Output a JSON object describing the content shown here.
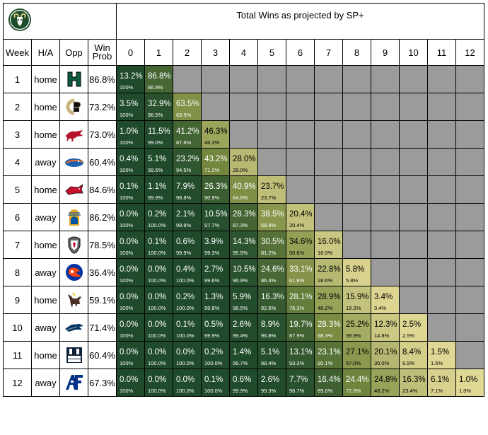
{
  "chart_data": {
    "type": "table",
    "title": "Total Wins as projected by SP+",
    "columns": {
      "week": "Week",
      "home_away": "H/A",
      "opponent": "Opp",
      "win_prob_line1": "Win",
      "win_prob_line2": "Prob"
    },
    "win_totals": [
      "0",
      "1",
      "2",
      "3",
      "4",
      "5",
      "6",
      "7",
      "8",
      "9",
      "10",
      "11",
      "12"
    ],
    "team_logo_icon": "csu-ram-logo-icon",
    "rows": [
      {
        "week": "1",
        "ha": "home",
        "opp_icon": "hawaii-logo-icon",
        "win_prob": "86.8%",
        "probs": [
          "13.2%",
          "86.8%"
        ],
        "cum": [
          "100%",
          "86.8%"
        ]
      },
      {
        "week": "2",
        "ha": "home",
        "opp_icon": "colorado-logo-icon",
        "win_prob": "73.2%",
        "probs": [
          "3.5%",
          "32.9%",
          "63.5%"
        ],
        "cum": [
          "100%",
          "96.5%",
          "63.5%"
        ]
      },
      {
        "week": "3",
        "ha": "home",
        "opp_icon": "arkansas-logo-icon",
        "win_prob": "73.0%",
        "probs": [
          "1.0%",
          "11.5%",
          "41.2%",
          "46.3%"
        ],
        "cum": [
          "100%",
          "99.0%",
          "87.6%",
          "46.3%"
        ]
      },
      {
        "week": "4",
        "ha": "away",
        "opp_icon": "florida-logo-icon",
        "win_prob": "60.4%",
        "probs": [
          "0.4%",
          "5.1%",
          "23.2%",
          "43.2%",
          "28.0%"
        ],
        "cum": [
          "100%",
          "99.6%",
          "94.5%",
          "71.2%",
          "28.0%"
        ]
      },
      {
        "week": "5",
        "ha": "home",
        "opp_icon": "illinois-state-logo-icon",
        "win_prob": "84.6%",
        "probs": [
          "0.1%",
          "1.1%",
          "7.9%",
          "26.3%",
          "40.9%",
          "23.7%"
        ],
        "cum": [
          "100%",
          "99.9%",
          "98.8%",
          "90.9%",
          "64.6%",
          "23.7%"
        ]
      },
      {
        "week": "6",
        "ha": "away",
        "opp_icon": "san-jose-state-logo-icon",
        "win_prob": "86.2%",
        "probs": [
          "0.0%",
          "0.2%",
          "2.1%",
          "10.5%",
          "28.3%",
          "38.5%",
          "20.4%"
        ],
        "cum": [
          "100%",
          "100.0%",
          "99.8%",
          "97.7%",
          "87.3%",
          "58.9%",
          "20.4%"
        ]
      },
      {
        "week": "7",
        "ha": "home",
        "opp_icon": "new-mexico-logo-icon",
        "win_prob": "78.5%",
        "probs": [
          "0.0%",
          "0.1%",
          "0.6%",
          "3.9%",
          "14.3%",
          "30.5%",
          "34.6%",
          "16.0%"
        ],
        "cum": [
          "100%",
          "100.0%",
          "99.9%",
          "99.3%",
          "95.5%",
          "81.2%",
          "50.6%",
          "16.0%"
        ]
      },
      {
        "week": "8",
        "ha": "away",
        "opp_icon": "boise-state-logo-icon",
        "win_prob": "36.4%",
        "probs": [
          "0.0%",
          "0.0%",
          "0.4%",
          "2.7%",
          "10.5%",
          "24.6%",
          "33.1%",
          "22.8%",
          "5.8%"
        ],
        "cum": [
          "100%",
          "100.0%",
          "100.0%",
          "99.6%",
          "96.9%",
          "86.4%",
          "61.8%",
          "28.6%",
          "5.8%"
        ]
      },
      {
        "week": "9",
        "ha": "home",
        "opp_icon": "wyoming-logo-icon",
        "win_prob": "59.1%",
        "probs": [
          "0.0%",
          "0.0%",
          "0.2%",
          "1.3%",
          "5.9%",
          "16.3%",
          "28.1%",
          "28.9%",
          "15.9%",
          "3.4%"
        ],
        "cum": [
          "100%",
          "100.0%",
          "100.0%",
          "99.8%",
          "98.5%",
          "92.6%",
          "76.3%",
          "48.2%",
          "19.3%",
          "3.4%"
        ]
      },
      {
        "week": "10",
        "ha": "away",
        "opp_icon": "nevada-logo-icon",
        "win_prob": "71.4%",
        "probs": [
          "0.0%",
          "0.0%",
          "0.1%",
          "0.5%",
          "2.6%",
          "8.9%",
          "19.7%",
          "28.3%",
          "25.2%",
          "12.3%",
          "2.5%"
        ],
        "cum": [
          "100%",
          "100.0%",
          "100.0%",
          "99.9%",
          "99.4%",
          "96.8%",
          "87.9%",
          "68.3%",
          "39.9%",
          "14.8%",
          "2.5%"
        ]
      },
      {
        "week": "11",
        "ha": "home",
        "opp_icon": "utah-state-logo-icon",
        "win_prob": "60.4%",
        "probs": [
          "0.0%",
          "0.0%",
          "0.0%",
          "0.2%",
          "1.4%",
          "5.1%",
          "13.1%",
          "23.1%",
          "27.1%",
          "20.1%",
          "8.4%",
          "1.5%"
        ],
        "cum": [
          "100%",
          "100.0%",
          "100.0%",
          "100.0%",
          "99.7%",
          "98.4%",
          "93.3%",
          "80.1%",
          "57.0%",
          "30.0%",
          "9.9%",
          "1.5%"
        ]
      },
      {
        "week": "12",
        "ha": "away",
        "opp_icon": "air-force-logo-icon",
        "win_prob": "67.3%",
        "probs": [
          "0.0%",
          "0.0%",
          "0.0%",
          "0.1%",
          "0.6%",
          "2.6%",
          "7.7%",
          "16.4%",
          "24.4%",
          "24.8%",
          "16.3%",
          "6.1%",
          "1.0%"
        ],
        "cum": [
          "100%",
          "100.0%",
          "100.0%",
          "100.0%",
          "99.9%",
          "99.3%",
          "96.7%",
          "89.0%",
          "72.6%",
          "48.2%",
          "23.4%",
          "7.1%",
          "1.0%"
        ]
      }
    ],
    "colors": {
      "unavailable": "#9b9b9b",
      "scale_high": "#1f4a2b",
      "scale_mid": "#778a3f",
      "scale_low": "#e2d996",
      "text_on_dark": "#ffffff",
      "text_on_light": "#000000"
    }
  }
}
